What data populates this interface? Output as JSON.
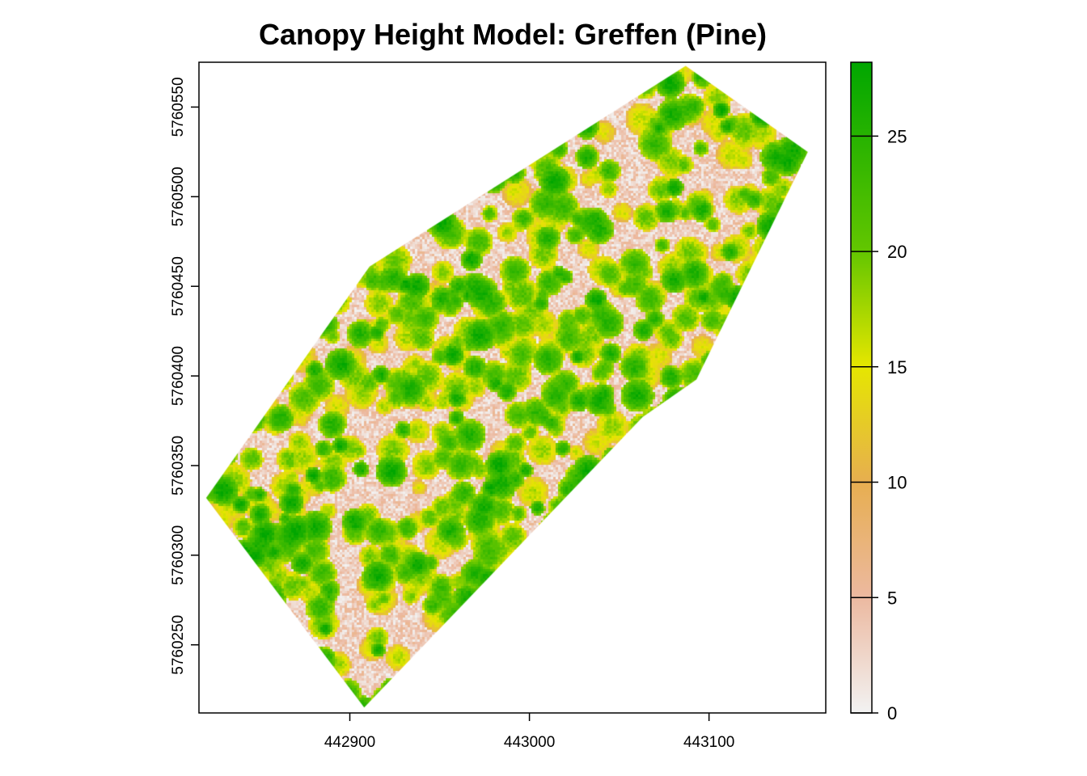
{
  "chart_data": {
    "type": "heatmap",
    "title": "Canopy Height Model: Greffen (Pine)",
    "xlabel": "",
    "ylabel": "",
    "xlim": [
      442816,
      443165
    ],
    "ylim": [
      5760212,
      5760575
    ],
    "x_ticks": [
      442900,
      443000,
      443100
    ],
    "x_tick_labels": [
      "442900",
      "443000",
      "443100"
    ],
    "y_ticks": [
      5760250,
      5760300,
      5760350,
      5760400,
      5760450,
      5760500,
      5760550
    ],
    "y_tick_labels": [
      "5760250",
      "5760300",
      "5760350",
      "5760400",
      "5760450",
      "5760500",
      "5760550"
    ],
    "colorbar": {
      "range": [
        0,
        28.2
      ],
      "ticks": [
        0,
        5,
        10,
        15,
        20,
        25
      ],
      "tick_labels": [
        "0",
        "5",
        "10",
        "15",
        "20",
        "25"
      ],
      "stops": [
        {
          "value": 0,
          "color": "#f2f2f2"
        },
        {
          "value": 5,
          "color": "#ecb9a0"
        },
        {
          "value": 10,
          "color": "#e7ae50"
        },
        {
          "value": 15,
          "color": "#e6e600"
        },
        {
          "value": 20,
          "color": "#63c600"
        },
        {
          "value": 28.2,
          "color": "#00a600"
        }
      ]
    },
    "stand_outline": {
      "x": [
        442820,
        442908,
        443063,
        443093,
        443155,
        443087,
        442911
      ],
      "y": [
        5760332,
        5760215,
        5760377,
        5760398,
        5760525,
        5760573,
        5760461
      ]
    },
    "value_distribution": "mostly 15-28 m tree crowns with scattered gaps of 0-10 m"
  }
}
